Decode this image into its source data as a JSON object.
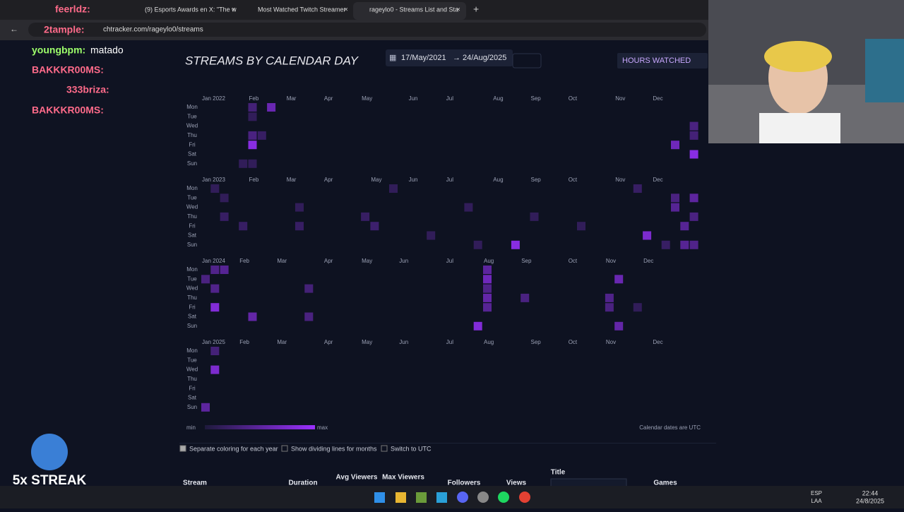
{
  "browser": {
    "tabs": [
      "(9) Esports Awards en X: \"The w",
      "Most Watched Twitch Streamer",
      "rageylo0 - Streams List and Sta"
    ],
    "url": "chtracker.com/rageylo0/streams"
  },
  "chat": [
    {
      "user": "feerldz:"
    },
    {
      "user": "2tample:"
    },
    {
      "user": "youngbpm:",
      "text": "matado"
    },
    {
      "user": "BAKKKR00MS:"
    },
    {
      "user": "333briza:"
    },
    {
      "user": "BAKKKR00MS:"
    }
  ],
  "streak": "5x STREAK",
  "calendar": {
    "title": "STREAMS BY CALENDAR DAY",
    "date_start": "17/May/2021",
    "arrow": "→",
    "date_end": "24/Aug/2025",
    "metric": "HOURS WATCHED",
    "days": [
      "Mon",
      "Tue",
      "Wed",
      "Thu",
      "Fri",
      "Sat",
      "Sun"
    ],
    "years": [
      {
        "months": [
          "Jan 2022",
          "Feb",
          "Mar",
          "Apr",
          "May",
          "Jun",
          "Jul",
          "Aug",
          "Sep",
          "Oct",
          "Nov",
          "Dec"
        ],
        "cells": [
          [
            5,
            0,
            0.3
          ],
          [
            7,
            0,
            0.6
          ],
          [
            5,
            1,
            0.15
          ],
          [
            5,
            3,
            0.35
          ],
          [
            6,
            3,
            0.2
          ],
          [
            5,
            4,
            0.85
          ],
          [
            4,
            6,
            0.15
          ],
          [
            5,
            6,
            0.15
          ],
          [
            52,
            2,
            0.35
          ],
          [
            52,
            3,
            0.3
          ],
          [
            50,
            4,
            0.65
          ],
          [
            52,
            5,
            0.85
          ]
        ]
      },
      {
        "months": [
          "Jan 2023",
          "Feb",
          "Mar",
          "Apr",
          "May",
          "Jun",
          "Jul",
          "Aug",
          "Sep",
          "Oct",
          "Nov",
          "Dec"
        ],
        "cells": [
          [
            1,
            0,
            0.15
          ],
          [
            2,
            1,
            0.15
          ],
          [
            2,
            3,
            0.2
          ],
          [
            4,
            4,
            0.2
          ],
          [
            10,
            2,
            0.15
          ],
          [
            10,
            4,
            0.2
          ],
          [
            17,
            3,
            0.2
          ],
          [
            18,
            4,
            0.25
          ],
          [
            20,
            0,
            0.15
          ],
          [
            24,
            5,
            0.15
          ],
          [
            28,
            2,
            0.15
          ],
          [
            29,
            6,
            0.15
          ],
          [
            33,
            6,
            0.85
          ],
          [
            35,
            3,
            0.15
          ],
          [
            40,
            4,
            0.15
          ],
          [
            46,
            0,
            0.2
          ],
          [
            47,
            5,
            0.75
          ],
          [
            49,
            6,
            0.2
          ],
          [
            50,
            1,
            0.35
          ],
          [
            50,
            2,
            0.45
          ],
          [
            51,
            4,
            0.45
          ],
          [
            51,
            6,
            0.45
          ],
          [
            52,
            1,
            0.5
          ],
          [
            52,
            3,
            0.35
          ],
          [
            52,
            6,
            0.4
          ]
        ]
      },
      {
        "months": [
          "Jan 2024",
          "Feb",
          "Mar",
          "Apr",
          "May",
          "Jun",
          "Jul",
          "Aug",
          "Sep",
          "Oct",
          "Nov",
          "Dec"
        ],
        "cells": [
          [
            0,
            1,
            0.35
          ],
          [
            1,
            0,
            0.4
          ],
          [
            2,
            0,
            0.45
          ],
          [
            1,
            2,
            0.4
          ],
          [
            1,
            4,
            0.8
          ],
          [
            5,
            5,
            0.55
          ],
          [
            11,
            2,
            0.3
          ],
          [
            11,
            5,
            0.35
          ],
          [
            29,
            6,
            0.8
          ],
          [
            30,
            0,
            0.5
          ],
          [
            30,
            1,
            0.65
          ],
          [
            30,
            2,
            0.4
          ],
          [
            30,
            3,
            0.55
          ],
          [
            30,
            4,
            0.45
          ],
          [
            34,
            3,
            0.35
          ],
          [
            43,
            3,
            0.4
          ],
          [
            43,
            4,
            0.35
          ],
          [
            44,
            1,
            0.6
          ],
          [
            44,
            6,
            0.55
          ],
          [
            46,
            4,
            0.15
          ]
        ]
      },
      {
        "months": [
          "Jan 2025",
          "Feb",
          "Mar",
          "Apr",
          "May",
          "Jun",
          "Jul",
          "Aug",
          "Sep",
          "Oct",
          "Nov",
          "Dec"
        ],
        "cells": [
          [
            1,
            0,
            0.3
          ],
          [
            1,
            2,
            0.75
          ],
          [
            0,
            6,
            0.5
          ]
        ]
      }
    ],
    "legend_min": "min",
    "legend_max": "max",
    "note": "Calendar dates are UTC"
  },
  "options": [
    "Separate coloring for each year",
    "Show dividing lines for months",
    "Switch to UTC"
  ],
  "table_headers": [
    "Stream",
    "Duration",
    "Avg Viewers",
    "Max Viewers",
    "Followers",
    "Views",
    "Title",
    "Games"
  ],
  "taskbar": {
    "lang1": "ESP",
    "lang2": "LAA",
    "time": "22:44",
    "date": "24/8/2025"
  }
}
